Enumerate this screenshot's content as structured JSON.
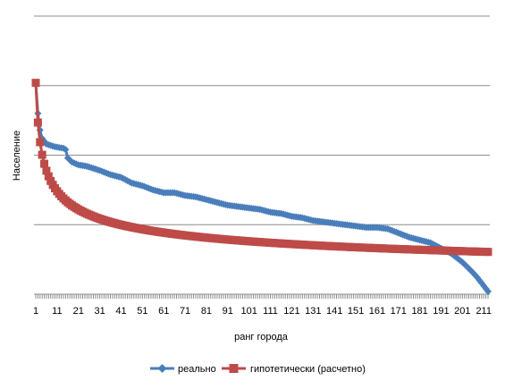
{
  "chart_data": {
    "type": "line",
    "title": "",
    "xlabel": "ранг города",
    "ylabel": "Население",
    "x_ticks": [
      "1",
      "11",
      "21",
      "31",
      "41",
      "51",
      "61",
      "71",
      "81",
      "91",
      "101",
      "111",
      "121",
      "131",
      "141",
      "151",
      "161",
      "171",
      "181",
      "191",
      "201",
      "211"
    ],
    "x_range": [
      1,
      213
    ],
    "grid": "horizontal",
    "y_gridlines": 4,
    "y_tick_labels_visible": false,
    "legend_position": "bottom",
    "series": [
      {
        "name": "реально",
        "color": "#4a7ebb",
        "marker": "diamond",
        "points": [
          [
            1,
            1.52
          ],
          [
            2,
            1.3
          ],
          [
            3,
            1.18
          ],
          [
            4,
            1.12
          ],
          [
            5,
            1.1
          ],
          [
            6,
            1.08
          ],
          [
            8,
            1.07
          ],
          [
            10,
            1.06
          ],
          [
            12,
            1.055
          ],
          [
            14,
            1.05
          ],
          [
            15,
            1.04
          ],
          [
            16,
            0.98
          ],
          [
            18,
            0.95
          ],
          [
            21,
            0.93
          ],
          [
            25,
            0.92
          ],
          [
            31,
            0.89
          ],
          [
            36,
            0.86
          ],
          [
            41,
            0.84
          ],
          [
            46,
            0.8
          ],
          [
            51,
            0.78
          ],
          [
            56,
            0.75
          ],
          [
            61,
            0.73
          ],
          [
            66,
            0.73
          ],
          [
            71,
            0.71
          ],
          [
            76,
            0.7
          ],
          [
            81,
            0.68
          ],
          [
            86,
            0.66
          ],
          [
            91,
            0.64
          ],
          [
            96,
            0.63
          ],
          [
            101,
            0.62
          ],
          [
            106,
            0.61
          ],
          [
            111,
            0.59
          ],
          [
            116,
            0.58
          ],
          [
            121,
            0.56
          ],
          [
            126,
            0.55
          ],
          [
            131,
            0.53
          ],
          [
            136,
            0.52
          ],
          [
            141,
            0.51
          ],
          [
            146,
            0.5
          ],
          [
            151,
            0.49
          ],
          [
            156,
            0.48
          ],
          [
            161,
            0.48
          ],
          [
            166,
            0.47
          ],
          [
            171,
            0.44
          ],
          [
            176,
            0.41
          ],
          [
            181,
            0.39
          ],
          [
            186,
            0.37
          ],
          [
            191,
            0.33
          ],
          [
            196,
            0.29
          ],
          [
            201,
            0.23
          ],
          [
            205,
            0.17
          ],
          [
            208,
            0.12
          ],
          [
            210,
            0.08
          ],
          [
            213,
            0.02
          ]
        ]
      },
      {
        "name": "гипотетически (расчетно)",
        "color": "#be4b48",
        "marker": "square",
        "power_law": {
          "y1": 1.52,
          "exponent": 0.3,
          "n": 213
        }
      }
    ]
  },
  "legend": {
    "items": [
      {
        "label": "реально",
        "color": "#4a7ebb"
      },
      {
        "label": "гипотетически (расчетно)",
        "color": "#be4b48"
      }
    ]
  }
}
